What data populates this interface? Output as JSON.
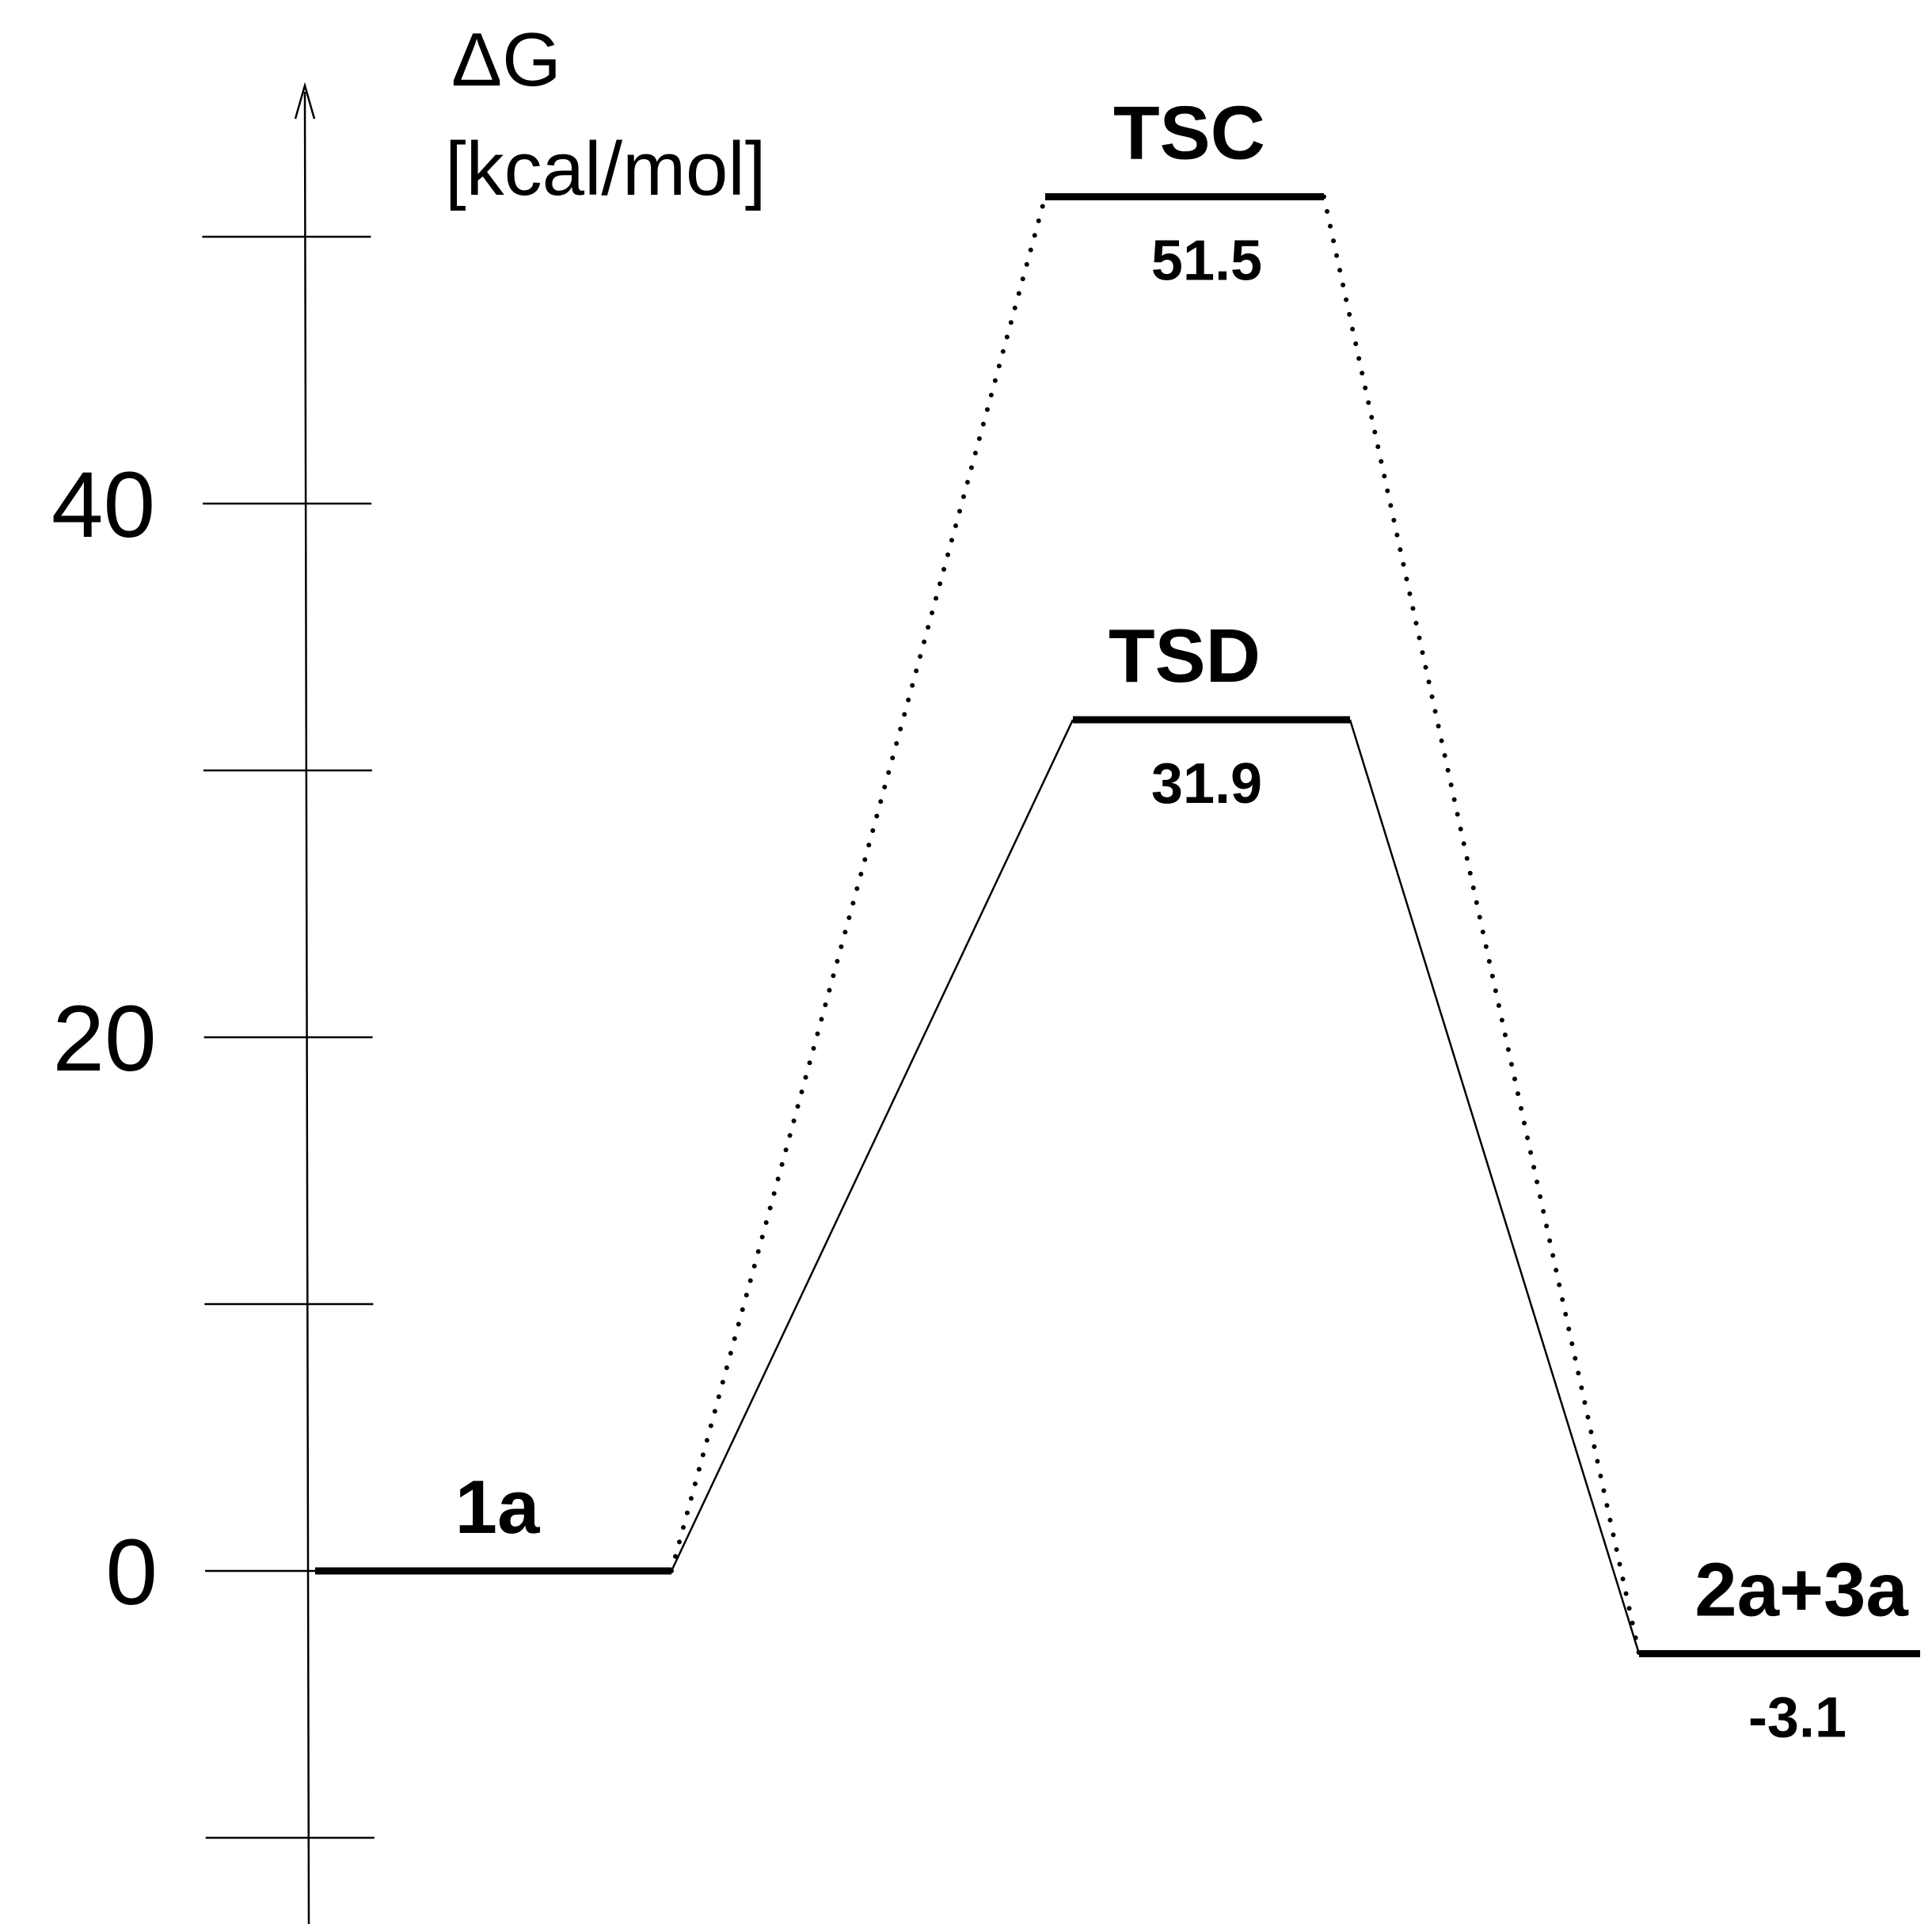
{
  "chart_data": {
    "type": "energy-diagram",
    "ylabel": [
      "ΔG",
      "[kcal/mol]"
    ],
    "yticks": [
      -10,
      0,
      10,
      20,
      30,
      40,
      50
    ],
    "ytick_labels": [
      {
        "value": 0,
        "label": "0"
      },
      {
        "value": 20,
        "label": "20"
      },
      {
        "value": 40,
        "label": "40"
      }
    ],
    "ylim": [
      -13,
      56
    ],
    "states": [
      {
        "id": "1a",
        "name": "1a",
        "value": 0,
        "value_label": ""
      },
      {
        "id": "TSC",
        "name": "TSC",
        "value": 51.5,
        "value_label": "51.5"
      },
      {
        "id": "TSD",
        "name": "TSD",
        "value": 31.9,
        "value_label": "31.9"
      },
      {
        "id": "prod",
        "name": "2a+3a",
        "value": -3.1,
        "value_label": "-3.1"
      }
    ],
    "pathways": [
      {
        "name": "",
        "style": "solid",
        "states": [
          "1a",
          "TSD",
          "prod"
        ]
      },
      {
        "name": "",
        "style": "dotted",
        "states": [
          "1a",
          "TSC",
          "prod"
        ]
      }
    ]
  }
}
